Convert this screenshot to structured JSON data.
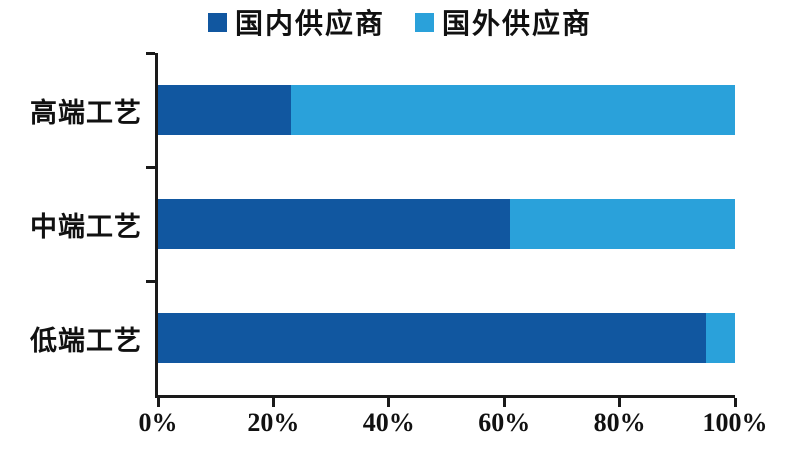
{
  "figure": {
    "background": "#ffffff"
  },
  "legend": {
    "position": "top",
    "items": [
      {
        "label": "国内供应商",
        "color": "#1157A0"
      },
      {
        "label": "国外供应商",
        "color": "#2AA1DA"
      }
    ]
  },
  "chart_data": {
    "type": "bar",
    "orientation": "horizontal",
    "stacked": true,
    "stack_total": 100,
    "categories": [
      "高端工艺",
      "中端工艺",
      "低端工艺"
    ],
    "series": [
      {
        "name": "国内供应商",
        "color": "#1157A0",
        "values": [
          23,
          61,
          95
        ]
      },
      {
        "name": "国外供应商",
        "color": "#2AA1DA",
        "values": [
          77,
          39,
          5
        ]
      }
    ],
    "x_axis": {
      "min": 0,
      "max": 100,
      "tick_step": 20,
      "tick_labels": [
        "0%",
        "20%",
        "40%",
        "60%",
        "80%",
        "100%"
      ]
    },
    "grid": false,
    "legend_position": "top",
    "axis_color": "#1a1a1a",
    "text_color": "#111111"
  }
}
